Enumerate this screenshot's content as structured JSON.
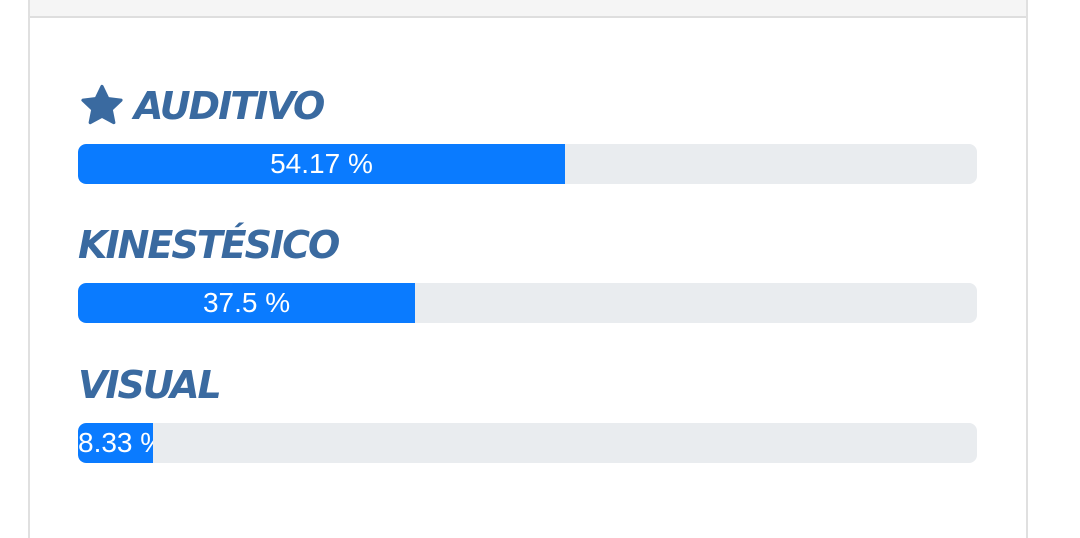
{
  "styles": {
    "accent": "#0a7bff",
    "track": "#e9ecef",
    "label_color": "#3a6aa0"
  },
  "results": [
    {
      "label": "AUDITIVO",
      "percent_text": "54.17 %",
      "value": 54.17,
      "icon": "star-icon"
    },
    {
      "label": "KINESTÉSICO",
      "percent_text": "37.5 %",
      "value": 37.5
    },
    {
      "label": "VISUAL",
      "percent_text": "8.33 %",
      "value": 8.33
    }
  ]
}
